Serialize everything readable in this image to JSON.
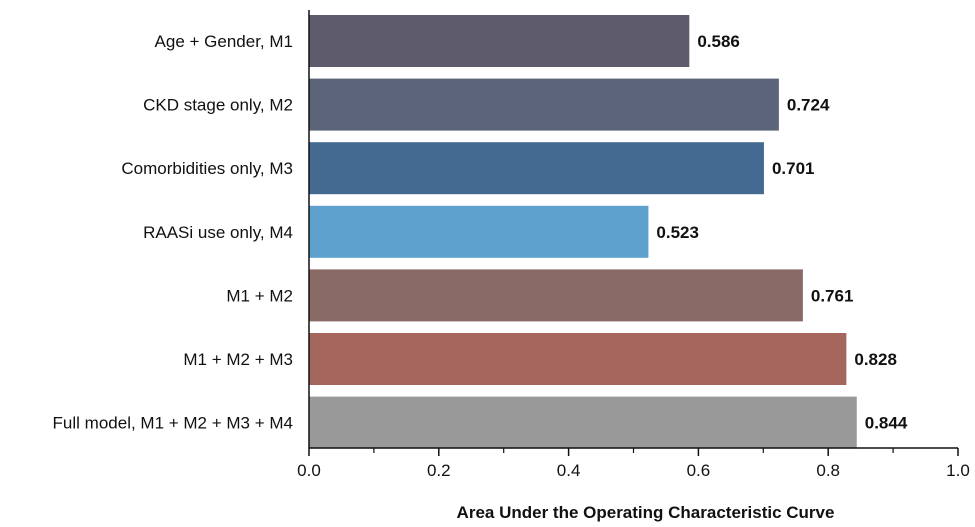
{
  "chart_data": {
    "type": "bar",
    "orientation": "horizontal",
    "categories": [
      "Age + Gender, M1",
      "CKD stage only, M2",
      "Comorbidities only, M3",
      "RAASi use only, M4",
      "M1 + M2",
      "M1 + M2 + M3 ",
      "Full model, M1 + M2 + M3 + M4"
    ],
    "values": [
      0.586,
      0.724,
      0.701,
      0.523,
      0.761,
      0.828,
      0.844
    ],
    "value_labels": [
      "0.586",
      "0.724",
      "0.701",
      "0.523",
      "0.761",
      "0.828",
      "0.844"
    ],
    "colors": [
      "#5e5c6c",
      "#5c6479",
      "#456a91",
      "#5fa1ce",
      "#896a65",
      "#a5665d",
      "#999999"
    ],
    "title": "",
    "xlabel": "Area Under the Operating Characteristic Curve",
    "ylabel": "",
    "xlim": [
      0.0,
      1.0
    ],
    "xticks": [
      0.0,
      0.2,
      0.4,
      0.6,
      0.8,
      1.0
    ],
    "xtick_labels": [
      "0.0",
      "0.2",
      "0.4",
      "0.6",
      "0.8",
      "1.0"
    ],
    "minor_ticks": true,
    "grid": false,
    "legend": "none"
  }
}
